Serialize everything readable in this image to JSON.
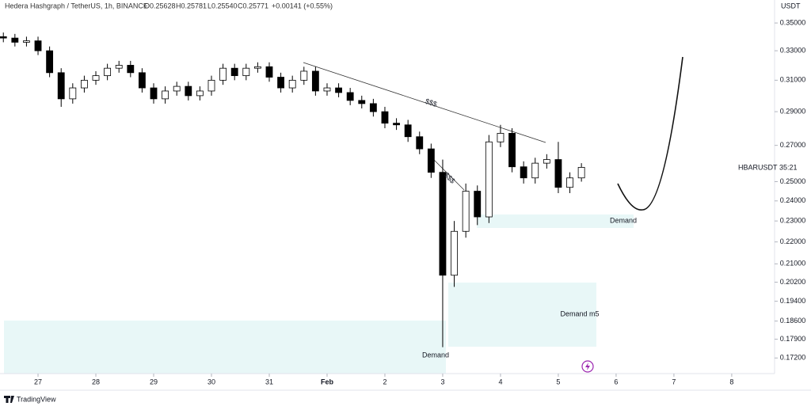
{
  "chart_data": {
    "type": "candlestick",
    "title": "Hedera Hashgraph / TetherUS, 1h, BINANCE",
    "ohlc_label": [
      "O0.25628",
      "H0.25781",
      "L0.25540",
      "C0.25771",
      "+0.00141 (+0.55%)"
    ],
    "currency": "USDT",
    "symbol_label": "HBARUSDT",
    "countdown": "35:21",
    "brand": "TradingView",
    "log_scale": true,
    "xlim": [
      26.342,
      39.7
    ],
    "ylim": [
      0.1664,
      0.3675
    ],
    "xticks": [
      27,
      28,
      29,
      30,
      31,
      {
        "value": 32,
        "label": "Feb"
      },
      {
        "value": 33,
        "label": "2"
      },
      {
        "value": 34,
        "label": "3"
      },
      {
        "value": 35,
        "label": "4"
      },
      {
        "value": 36,
        "label": "5"
      },
      {
        "value": 37,
        "label": "6"
      },
      {
        "value": 38,
        "label": "7"
      },
      {
        "value": 39,
        "label": "8"
      }
    ],
    "yticks": [
      {
        "value": 0.35,
        "label": "0.35000"
      },
      {
        "value": 0.33,
        "label": "0.33000"
      },
      {
        "value": 0.31,
        "label": "0.31000"
      },
      {
        "value": 0.29,
        "label": "0.29000"
      },
      {
        "value": 0.27,
        "label": "0.27000"
      },
      {
        "value": 0.25,
        "label": "0.25000"
      },
      {
        "value": 0.24,
        "label": "0.24000"
      },
      {
        "value": 0.23,
        "label": "0.23000"
      },
      {
        "value": 0.22,
        "label": "0.22000"
      },
      {
        "value": 0.21,
        "label": "0.21000"
      },
      {
        "value": 0.202,
        "label": "0.20200"
      },
      {
        "value": 0.194,
        "label": "0.19400"
      },
      {
        "value": 0.186,
        "label": "0.18600"
      },
      {
        "value": 0.179,
        "label": "0.17900"
      },
      {
        "value": 0.172,
        "label": "0.17200"
      }
    ],
    "up_color": "#ffffff",
    "down_color": "#000000",
    "wick_color": "#000000",
    "x": [
      26.4,
      26.6,
      26.8,
      27.0,
      27.2,
      27.4,
      27.6,
      27.8,
      28.0,
      28.2,
      28.4,
      28.6,
      28.8,
      29.0,
      29.2,
      29.4,
      29.6,
      29.8,
      30.0,
      30.2,
      30.4,
      30.6,
      30.8,
      31.0,
      31.2,
      31.4,
      31.6,
      31.8,
      32.0,
      32.2,
      32.4,
      32.6,
      32.8,
      33.0,
      33.2,
      33.4,
      33.6,
      33.8,
      34.0,
      34.2,
      34.4,
      34.6,
      34.8,
      35.0,
      35.2,
      35.4,
      35.6,
      35.8,
      36.0,
      36.2,
      36.4
    ],
    "open": [
      0.34,
      0.339,
      0.336,
      0.337,
      0.33,
      0.315,
      0.298,
      0.305,
      0.31,
      0.313,
      0.318,
      0.32,
      0.315,
      0.305,
      0.298,
      0.303,
      0.306,
      0.3,
      0.303,
      0.31,
      0.318,
      0.313,
      0.318,
      0.319,
      0.312,
      0.305,
      0.31,
      0.316,
      0.303,
      0.305,
      0.302,
      0.297,
      0.295,
      0.29,
      0.283,
      0.282,
      0.275,
      0.268,
      0.255,
      0.205,
      0.225,
      0.245,
      0.232,
      0.272,
      0.277,
      0.258,
      0.252,
      0.26,
      0.262,
      0.247,
      0.252
    ],
    "high": [
      0.343,
      0.342,
      0.34,
      0.34,
      0.333,
      0.318,
      0.308,
      0.313,
      0.316,
      0.321,
      0.323,
      0.323,
      0.318,
      0.308,
      0.306,
      0.309,
      0.309,
      0.306,
      0.313,
      0.321,
      0.321,
      0.321,
      0.322,
      0.322,
      0.315,
      0.313,
      0.319,
      0.319,
      0.308,
      0.308,
      0.305,
      0.3,
      0.298,
      0.293,
      0.286,
      0.285,
      0.278,
      0.271,
      0.262,
      0.23,
      0.249,
      0.248,
      0.276,
      0.282,
      0.28,
      0.261,
      0.263,
      0.265,
      0.272,
      0.255,
      0.26
    ],
    "low": [
      0.336,
      0.333,
      0.333,
      0.327,
      0.312,
      0.293,
      0.295,
      0.302,
      0.307,
      0.31,
      0.315,
      0.312,
      0.302,
      0.295,
      0.295,
      0.3,
      0.297,
      0.297,
      0.3,
      0.307,
      0.31,
      0.31,
      0.315,
      0.309,
      0.302,
      0.302,
      0.307,
      0.3,
      0.3,
      0.299,
      0.294,
      0.292,
      0.287,
      0.28,
      0.279,
      0.272,
      0.265,
      0.252,
      0.176,
      0.2,
      0.222,
      0.228,
      0.229,
      0.269,
      0.255,
      0.249,
      0.249,
      0.257,
      0.244,
      0.244,
      0.25
    ],
    "close": [
      0.339,
      0.336,
      0.337,
      0.33,
      0.315,
      0.298,
      0.305,
      0.31,
      0.313,
      0.318,
      0.32,
      0.315,
      0.305,
      0.298,
      0.303,
      0.306,
      0.3,
      0.303,
      0.31,
      0.318,
      0.313,
      0.318,
      0.319,
      0.312,
      0.305,
      0.31,
      0.316,
      0.303,
      0.305,
      0.302,
      0.297,
      0.295,
      0.29,
      0.283,
      0.282,
      0.275,
      0.268,
      0.255,
      0.205,
      0.225,
      0.245,
      0.232,
      0.272,
      0.277,
      0.258,
      0.252,
      0.26,
      0.262,
      0.247,
      0.252,
      0.2577
    ],
    "annotations": [
      "$$$",
      "$$$",
      "Demand",
      "Demand m5",
      "Demand"
    ]
  }
}
